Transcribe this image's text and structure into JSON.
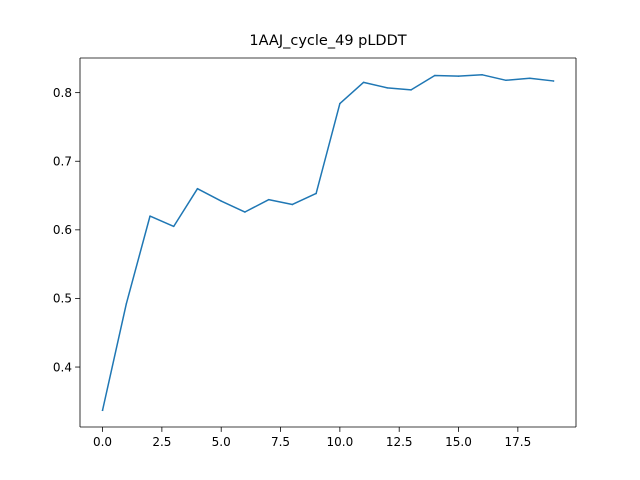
{
  "chart_data": {
    "type": "line",
    "title": "1AAJ_cycle_49 pLDDT",
    "xlabel": "",
    "ylabel": "",
    "x": [
      0,
      1,
      2,
      3,
      4,
      5,
      6,
      7,
      8,
      9,
      10,
      11,
      12,
      13,
      14,
      15,
      16,
      17,
      18,
      19
    ],
    "series": [
      {
        "values": [
          0.337,
          0.492,
          0.62,
          0.605,
          0.66,
          0.642,
          0.626,
          0.644,
          0.637,
          0.653,
          0.784,
          0.815,
          0.807,
          0.804,
          0.825,
          0.824,
          0.826,
          0.818,
          0.821,
          0.817
        ],
        "color": "#1f77b4"
      }
    ],
    "xlim": [
      -0.95,
      19.95
    ],
    "ylim": [
      0.3126,
      0.8505
    ],
    "xticks": [
      0.0,
      2.5,
      5.0,
      7.5,
      10.0,
      12.5,
      15.0,
      17.5
    ],
    "xtick_labels": [
      "0.0",
      "2.5",
      "5.0",
      "7.5",
      "10.0",
      "12.5",
      "15.0",
      "17.5"
    ],
    "yticks": [
      0.4,
      0.5,
      0.6,
      0.7,
      0.8
    ],
    "ytick_labels": [
      "0.4",
      "0.5",
      "0.6",
      "0.7",
      "0.8"
    ],
    "grid": false,
    "legend": "none"
  }
}
